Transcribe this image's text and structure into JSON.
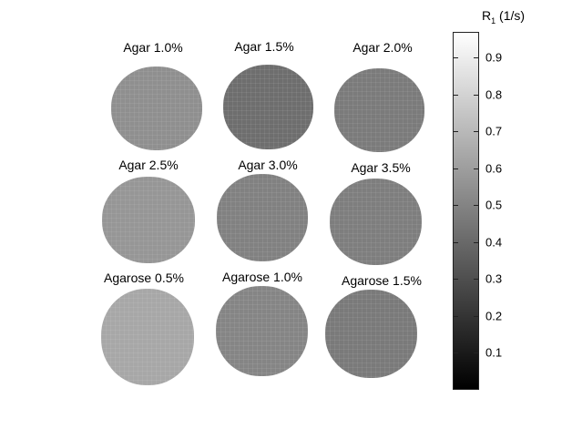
{
  "phantoms": [
    {
      "label": "Agar 1.0%",
      "color": "#8f8f8f"
    },
    {
      "label": "Agar 1.5%",
      "color": "#6e6e6e"
    },
    {
      "label": "Agar 2.0%",
      "color": "#7b7b7b"
    },
    {
      "label": "Agar 2.5%",
      "color": "#969696"
    },
    {
      "label": "Agar 3.0%",
      "color": "#818181"
    },
    {
      "label": "Agar 3.5%",
      "color": "#7e7e7e"
    },
    {
      "label": "Agarose 0.5%",
      "color": "#a7a7a7"
    },
    {
      "label": "Agarose 1.0%",
      "color": "#858585"
    },
    {
      "label": "Agarose 1.5%",
      "color": "#7a7a7a"
    }
  ],
  "colorbar": {
    "title_main": "R",
    "title_sub": "1",
    "title_unit": "(1/s)",
    "ticks": [
      "0.1",
      "0.2",
      "0.3",
      "0.4",
      "0.5",
      "0.6",
      "0.7",
      "0.8",
      "0.9"
    ],
    "min": 0,
    "max": 0.97
  }
}
